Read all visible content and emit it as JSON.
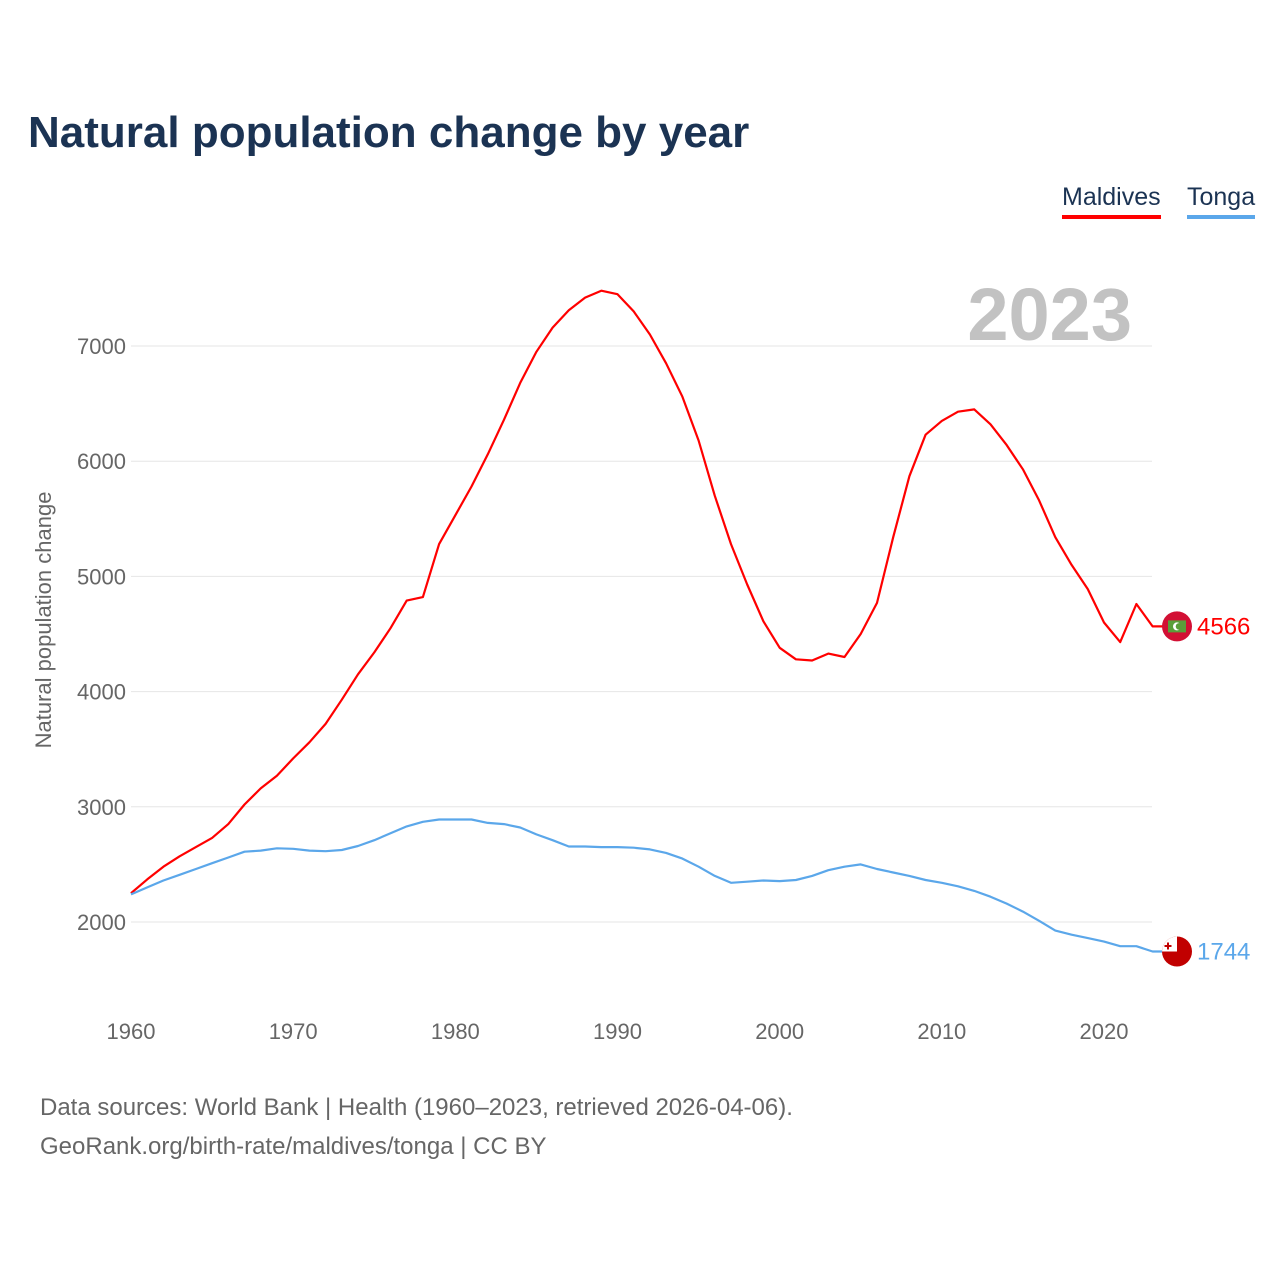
{
  "title": "Natural population change by year",
  "legend": [
    {
      "label": "Maldives",
      "color": "#ff0000"
    },
    {
      "label": "Tonga",
      "color": "#5ba7ea"
    }
  ],
  "year_overlay": "2023",
  "source": {
    "line1": "Data sources: World Bank | Health (1960–2023, retrieved 2026-04-06).",
    "line2": "GeoRank.org/birth-rate/maldives/tonga | CC BY"
  },
  "chart_data": {
    "type": "line",
    "title": "Natural population change by year",
    "xlabel": "",
    "ylabel": "Natural population change",
    "xlim": [
      1960,
      2023
    ],
    "ylim": [
      1500,
      7600
    ],
    "x_ticks": [
      "1960",
      "1970",
      "1980",
      "1990",
      "2000",
      "2010",
      "2020"
    ],
    "y_ticks": [
      "2000",
      "3000",
      "4000",
      "5000",
      "6000",
      "7000"
    ],
    "grid": true,
    "legend_position": "top-right",
    "x": [
      1960,
      1961,
      1962,
      1963,
      1964,
      1965,
      1966,
      1967,
      1968,
      1969,
      1970,
      1971,
      1972,
      1973,
      1974,
      1975,
      1976,
      1977,
      1978,
      1979,
      1980,
      1981,
      1982,
      1983,
      1984,
      1985,
      1986,
      1987,
      1988,
      1989,
      1990,
      1991,
      1992,
      1993,
      1994,
      1995,
      1996,
      1997,
      1998,
      1999,
      2000,
      2001,
      2002,
      2003,
      2004,
      2005,
      2006,
      2007,
      2008,
      2009,
      2010,
      2011,
      2012,
      2013,
      2014,
      2015,
      2016,
      2017,
      2018,
      2019,
      2020,
      2021,
      2022,
      2023
    ],
    "series": [
      {
        "name": "Maldives",
        "color": "#ff0000",
        "end_label": "4566",
        "values": [
          2250,
          2370,
          2480,
          2570,
          2650,
          2730,
          2850,
          3020,
          3160,
          3270,
          3420,
          3560,
          3720,
          3930,
          4150,
          4340,
          4550,
          4790,
          4820,
          5280,
          5530,
          5780,
          6060,
          6360,
          6680,
          6950,
          7160,
          7310,
          7420,
          7480,
          7450,
          7300,
          7100,
          6850,
          6560,
          6180,
          5700,
          5280,
          4930,
          4610,
          4380,
          4280,
          4270,
          4330,
          4300,
          4500,
          4770,
          5340,
          5870,
          6230,
          6350,
          6430,
          6450,
          6320,
          6140,
          5930,
          5660,
          5340,
          5100,
          4890,
          4600,
          4430,
          4760,
          4566
        ]
      },
      {
        "name": "Tonga",
        "color": "#5ba7ea",
        "end_label": "1744",
        "values": [
          2240,
          2300,
          2360,
          2410,
          2460,
          2510,
          2560,
          2610,
          2620,
          2640,
          2635,
          2620,
          2615,
          2625,
          2660,
          2710,
          2770,
          2830,
          2870,
          2890,
          2890,
          2890,
          2860,
          2850,
          2820,
          2760,
          2710,
          2655,
          2655,
          2650,
          2650,
          2645,
          2630,
          2600,
          2550,
          2480,
          2400,
          2340,
          2350,
          2360,
          2355,
          2365,
          2400,
          2450,
          2480,
          2500,
          2460,
          2430,
          2400,
          2365,
          2340,
          2310,
          2270,
          2220,
          2160,
          2090,
          2010,
          1925,
          1890,
          1860,
          1830,
          1790,
          1790,
          1744
        ]
      }
    ]
  }
}
